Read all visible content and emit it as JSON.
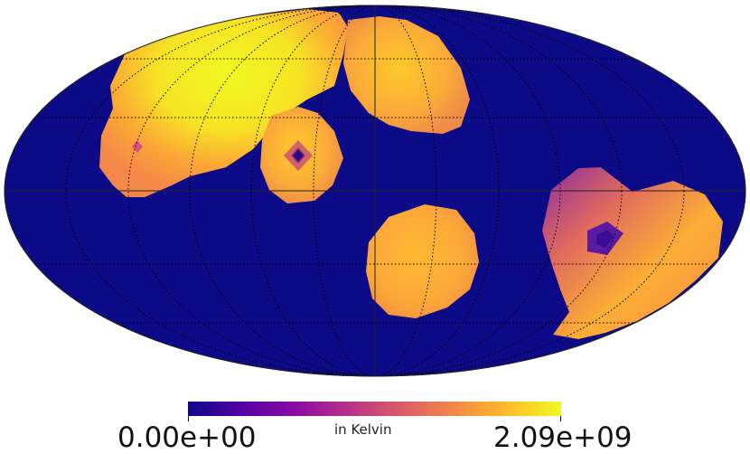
{
  "map": {
    "projection": "mollweide",
    "background_color": "#ffffff",
    "sphere_fill": "#0d0a87",
    "graticule_color": "#000000"
  },
  "colorbar": {
    "min_label": "0.00e+00",
    "max_label": "2.09e+09",
    "unit_label": "in Kelvin",
    "colormap": "plasma",
    "stops": [
      "#0d0887",
      "#5302a3",
      "#8b0aa5",
      "#b83289",
      "#db5c68",
      "#f48849",
      "#febd2a",
      "#f0f921"
    ]
  },
  "regions": [
    {
      "id": "north-west-large",
      "level": 0.88
    },
    {
      "id": "north-central-blob",
      "level": 0.78
    },
    {
      "id": "north-central-small",
      "level": 0.72
    },
    {
      "id": "south-center-blob",
      "level": 0.78
    },
    {
      "id": "east-blob",
      "level": 0.72
    }
  ]
}
